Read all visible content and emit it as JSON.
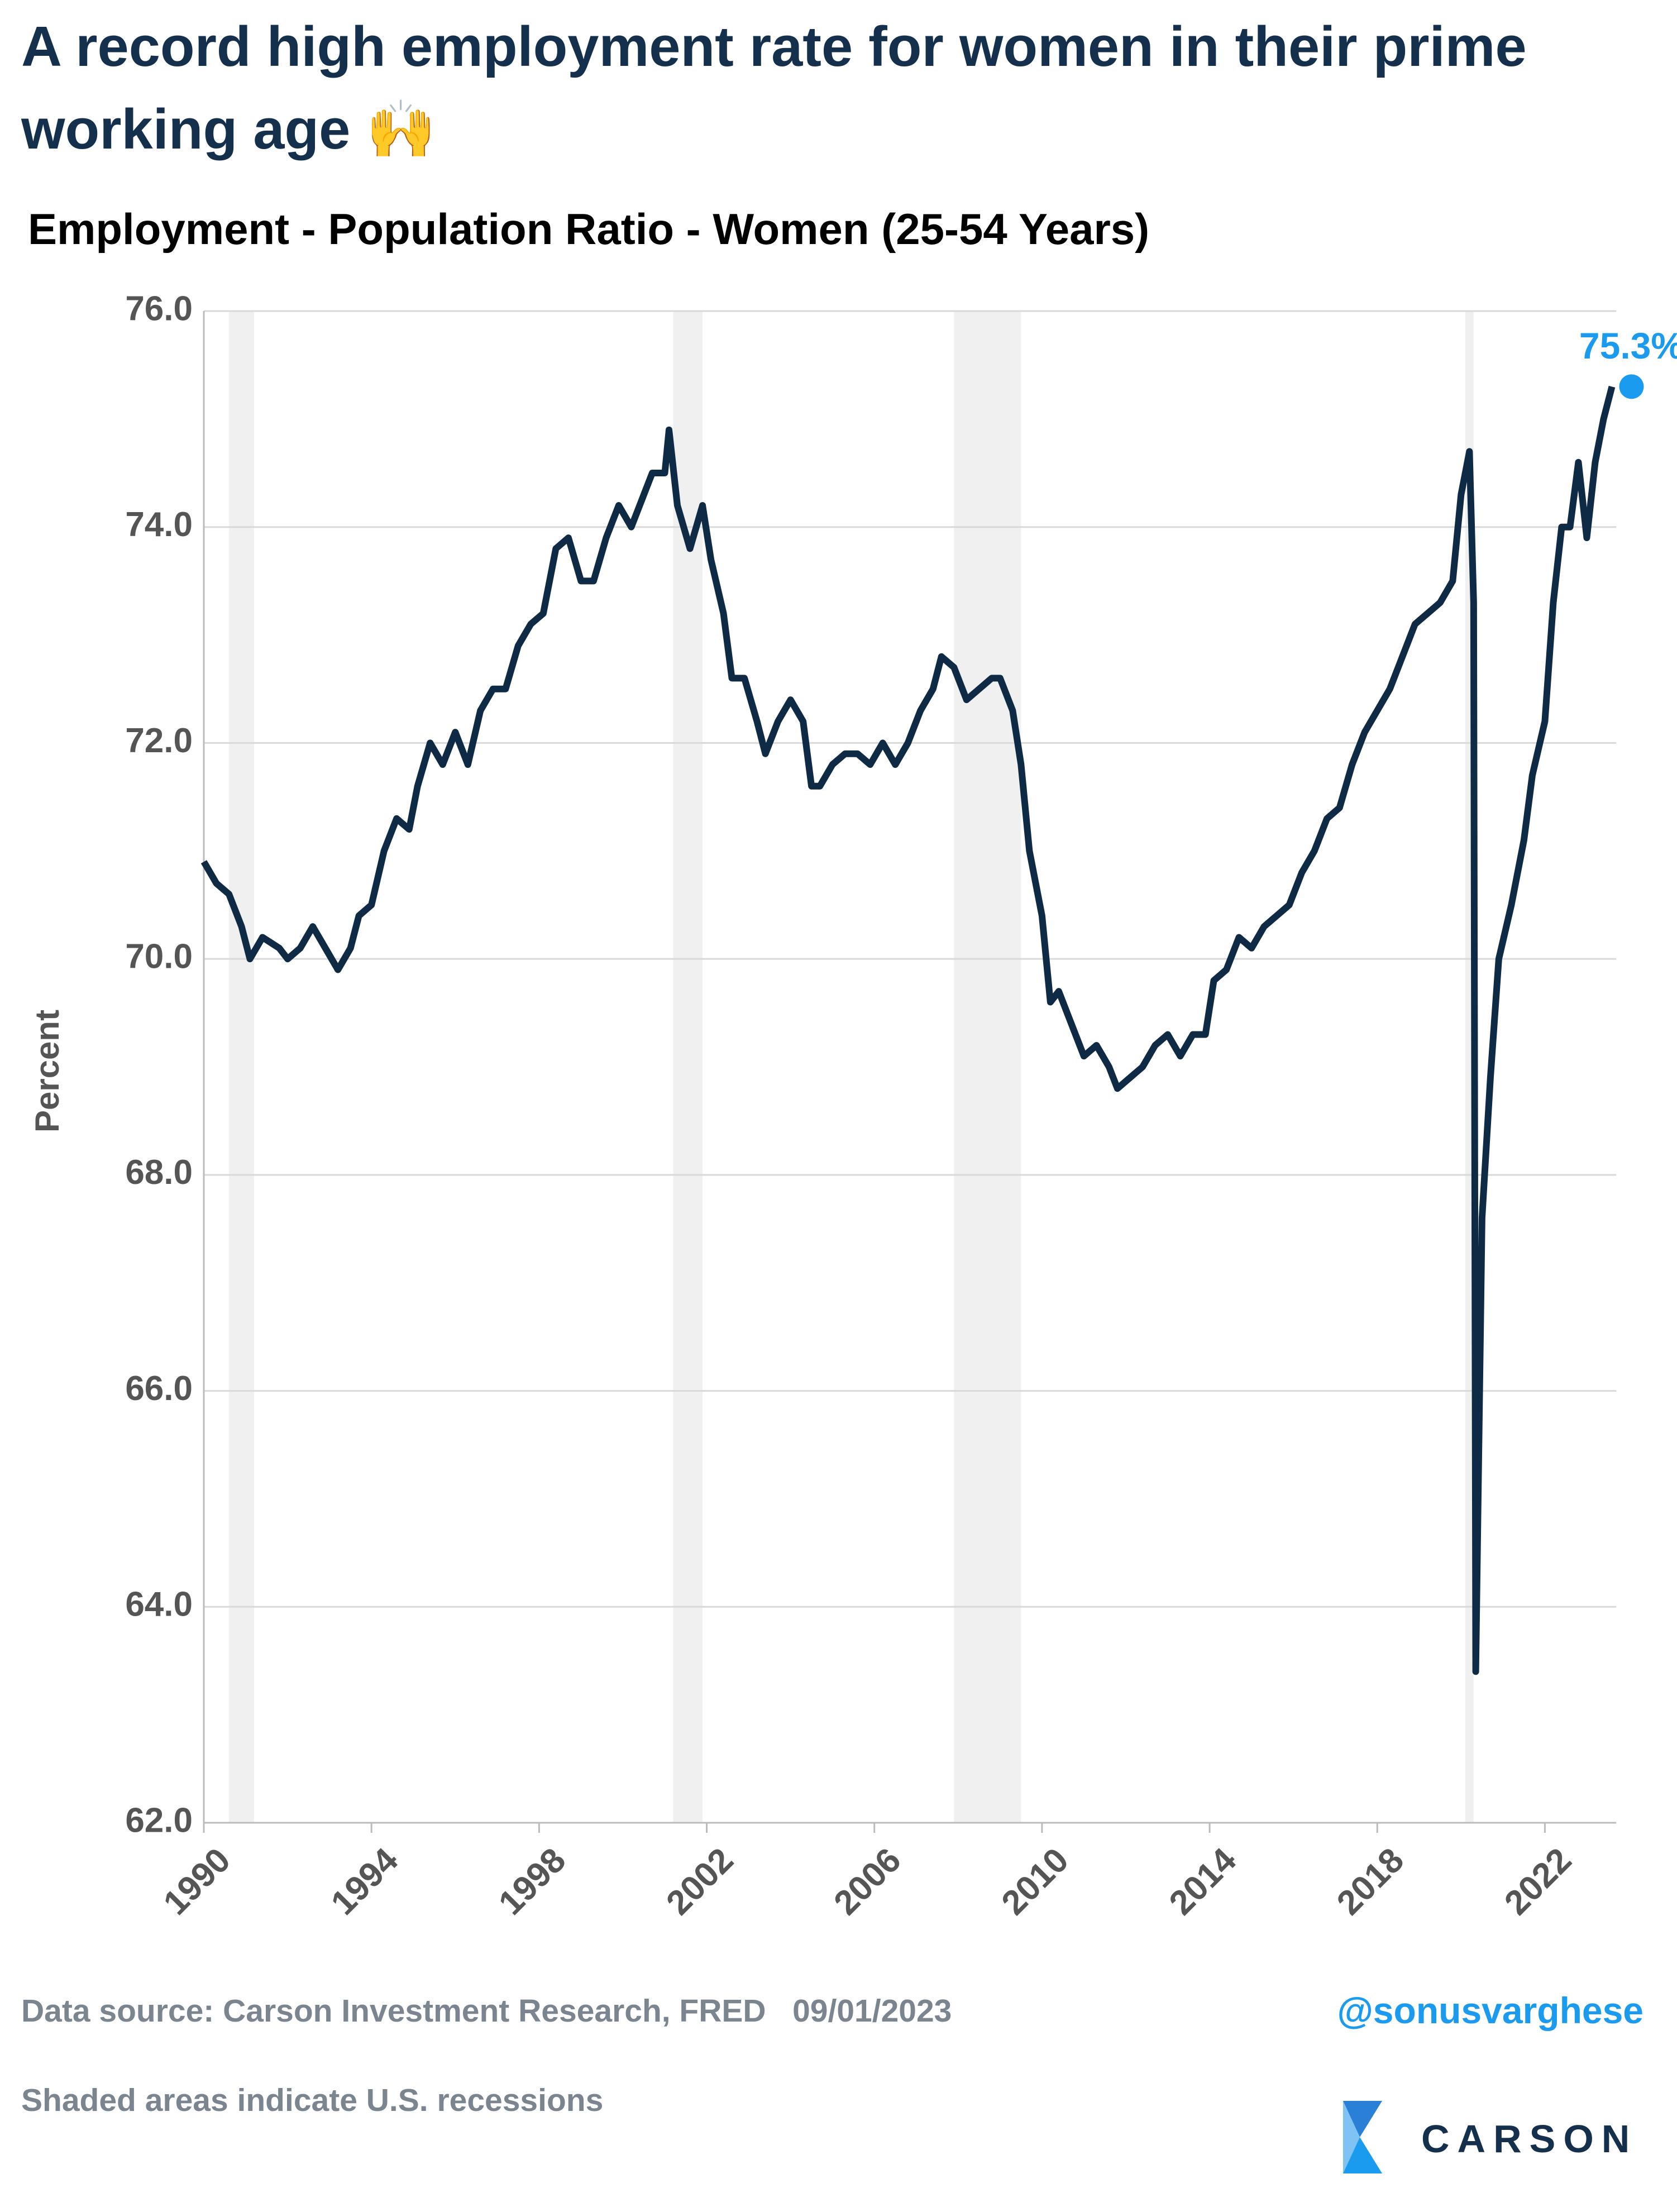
{
  "title": "A record high employment rate for women in their prime working age 🙌",
  "chart_data": {
    "type": "line",
    "subtitle": "Employment - Population Ratio - Women (25-54 Years)",
    "y_label": "Percent",
    "color": "#0f2a44",
    "grid": true,
    "x": [
      1990.0,
      1990.3,
      1990.6,
      1990.9,
      1991.1,
      1991.4,
      1991.8,
      1992.0,
      1992.3,
      1992.6,
      1992.9,
      1993.2,
      1993.5,
      1993.7,
      1994.0,
      1994.3,
      1994.6,
      1994.9,
      1995.1,
      1995.4,
      1995.7,
      1996.0,
      1996.3,
      1996.6,
      1996.9,
      1997.2,
      1997.5,
      1997.8,
      1998.1,
      1998.4,
      1998.7,
      1999.0,
      1999.3,
      1999.6,
      1999.9,
      2000.2,
      2000.5,
      2000.7,
      2001.0,
      2001.1,
      2001.3,
      2001.6,
      2001.9,
      2002.1,
      2002.4,
      2002.6,
      2002.9,
      2003.2,
      2003.4,
      2003.7,
      2004.0,
      2004.3,
      2004.5,
      2004.7,
      2005.0,
      2005.3,
      2005.6,
      2005.9,
      2006.2,
      2006.5,
      2006.8,
      2007.1,
      2007.4,
      2007.6,
      2007.9,
      2008.2,
      2008.5,
      2008.8,
      2009.0,
      2009.3,
      2009.5,
      2009.7,
      2010.0,
      2010.2,
      2010.4,
      2010.7,
      2011.0,
      2011.3,
      2011.6,
      2011.8,
      2012.1,
      2012.4,
      2012.7,
      2013.0,
      2013.3,
      2013.6,
      2013.9,
      2014.1,
      2014.4,
      2014.7,
      2015.0,
      2015.3,
      2015.6,
      2015.9,
      2016.2,
      2016.5,
      2016.8,
      2017.1,
      2017.4,
      2017.7,
      2018.0,
      2018.3,
      2018.6,
      2018.9,
      2019.2,
      2019.5,
      2019.8,
      2020.0,
      2020.2,
      2020.3,
      2020.35,
      2020.5,
      2020.7,
      2020.9,
      2021.2,
      2021.5,
      2021.7,
      2022.0,
      2022.2,
      2022.4,
      2022.6,
      2022.8,
      2023.0,
      2023.2,
      2023.4,
      2023.6
    ],
    "values": [
      70.9,
      70.7,
      70.6,
      70.3,
      70.0,
      70.2,
      70.1,
      70.0,
      70.1,
      70.3,
      70.1,
      69.9,
      70.1,
      70.4,
      70.5,
      71.0,
      71.3,
      71.2,
      71.6,
      72.0,
      71.8,
      72.1,
      71.8,
      72.3,
      72.5,
      72.5,
      72.9,
      73.1,
      73.2,
      73.8,
      73.9,
      73.5,
      73.5,
      73.9,
      74.2,
      74.0,
      74.3,
      74.5,
      74.5,
      74.9,
      74.2,
      73.8,
      74.2,
      73.7,
      73.2,
      72.6,
      72.6,
      72.2,
      71.9,
      72.2,
      72.4,
      72.2,
      71.6,
      71.6,
      71.8,
      71.9,
      71.9,
      71.8,
      72.0,
      71.8,
      72.0,
      72.3,
      72.5,
      72.8,
      72.7,
      72.4,
      72.5,
      72.6,
      72.6,
      72.3,
      71.8,
      71.0,
      70.4,
      69.6,
      69.7,
      69.4,
      69.1,
      69.2,
      69.0,
      68.8,
      68.9,
      69.0,
      69.2,
      69.3,
      69.1,
      69.3,
      69.3,
      69.8,
      69.9,
      70.2,
      70.1,
      70.3,
      70.4,
      70.5,
      70.8,
      71.0,
      71.3,
      71.4,
      71.8,
      72.1,
      72.3,
      72.5,
      72.8,
      73.1,
      73.2,
      73.3,
      73.5,
      74.3,
      74.7,
      73.3,
      63.4,
      67.6,
      68.9,
      70.0,
      70.5,
      71.1,
      71.7,
      72.2,
      73.3,
      74.0,
      74.0,
      74.6,
      73.9,
      74.6,
      75.0,
      75.3
    ],
    "annotation": "75.3%",
    "recessions": [
      [
        1990.6,
        1991.2
      ],
      [
        2001.2,
        2001.9
      ],
      [
        2007.9,
        2009.5
      ],
      [
        2020.1,
        2020.3
      ]
    ],
    "xlim": [
      1990,
      2023.7
    ],
    "xticks": [
      1990,
      1994,
      1998,
      2002,
      2006,
      2010,
      2014,
      2018,
      2022
    ],
    "ylim": [
      62,
      76
    ],
    "yticks": [
      {
        "value": 62,
        "label": "62.0"
      },
      {
        "value": 64,
        "label": "64.0"
      },
      {
        "value": 66,
        "label": "66.0"
      },
      {
        "value": 68,
        "label": "68.0"
      },
      {
        "value": 70,
        "label": "70.0"
      },
      {
        "value": 72,
        "label": "72.0"
      },
      {
        "value": 74,
        "label": "74.0"
      },
      {
        "value": 76,
        "label": "76.0"
      }
    ]
  },
  "footer": {
    "source": "Data source: Carson Investment Research, FRED   09/01/2023",
    "note": "Shaded areas indicate U.S. recessions",
    "handle": "@sonusvarghese",
    "logo": "CARSON"
  }
}
